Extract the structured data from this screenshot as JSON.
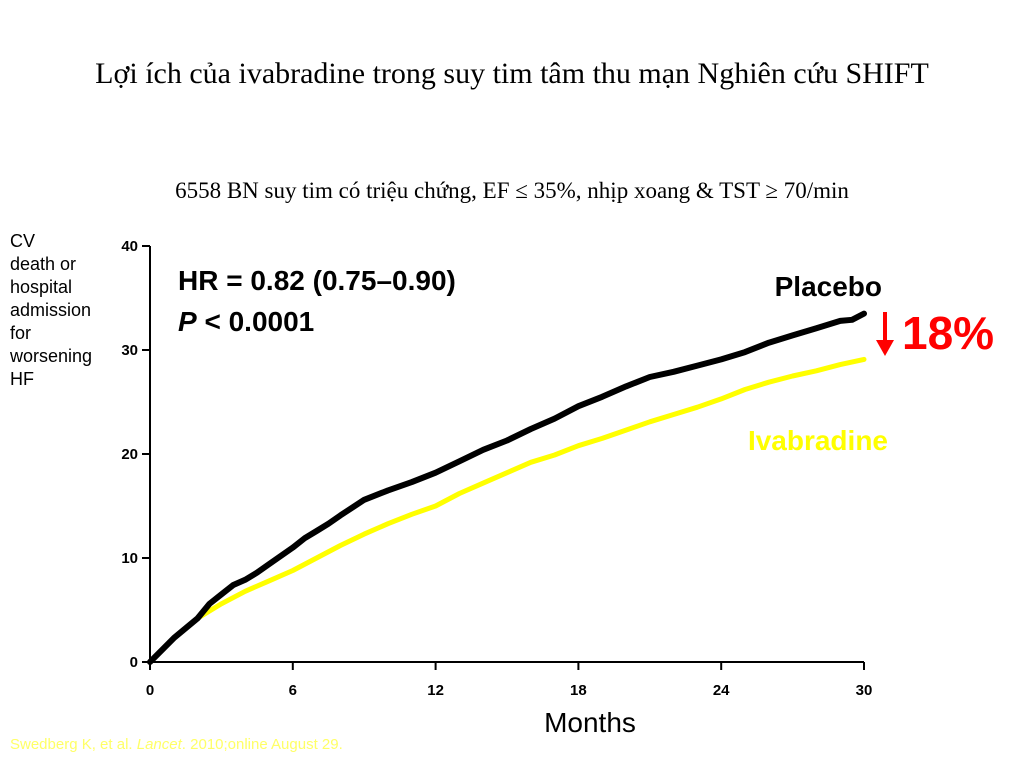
{
  "title": "Lợi ích của ivabradine trong suy tim tâm thu mạn Nghiên cứu SHIFT",
  "subtitle": "6558 BN suy tim có triệu chứng, EF ≤ 35%, nhịp xoang & TST ≥ 70/min",
  "source": {
    "prefix": "Swedberg K, et al. ",
    "journal": "Lancet",
    "suffix": ". 2010;online August 29."
  },
  "chart_data": {
    "type": "line",
    "xlabel": "Months",
    "ylabel_lines": [
      "CV",
      "death or",
      "hospital",
      "admission",
      "for",
      "worsening",
      "HF"
    ],
    "xlim": [
      0,
      30
    ],
    "ylim": [
      0,
      40
    ],
    "xticks": [
      0,
      6,
      12,
      18,
      24,
      30
    ],
    "yticks": [
      0,
      10,
      20,
      30,
      40
    ],
    "grid": false,
    "stats": {
      "hr": "HR = 0.82 (0.75–0.90)",
      "p_symbol": "P",
      "p_rest": " < 0.0001"
    },
    "reduction": {
      "label": "18%",
      "color": "#ff0000"
    },
    "series": [
      {
        "name": "Placebo",
        "color": "#000000",
        "x": [
          0,
          1,
          2,
          2.5,
          3,
          3.5,
          4,
          4.5,
          5,
          6,
          6.5,
          7,
          7.5,
          8,
          9,
          10,
          11,
          12,
          13,
          14,
          15,
          16,
          17,
          18,
          19,
          20,
          21,
          22,
          23,
          24,
          25,
          26,
          27,
          28,
          29,
          29.5,
          30
        ],
        "y": [
          0,
          2.3,
          4.2,
          5.6,
          6.5,
          7.4,
          7.9,
          8.6,
          9.4,
          11.0,
          11.9,
          12.6,
          13.3,
          14.1,
          15.6,
          16.5,
          17.3,
          18.2,
          19.3,
          20.4,
          21.3,
          22.4,
          23.4,
          24.6,
          25.5,
          26.5,
          27.4,
          27.9,
          28.5,
          29.1,
          29.8,
          30.7,
          31.4,
          32.1,
          32.8,
          32.9,
          33.5
        ]
      },
      {
        "name": "Ivabradine",
        "color": "#ffff00",
        "x": [
          0,
          1,
          2,
          3,
          4,
          5,
          6,
          7,
          8,
          9,
          10,
          11,
          12,
          13,
          14,
          15,
          16,
          17,
          18,
          19,
          20,
          21,
          22,
          23,
          24,
          25,
          26,
          27,
          28,
          29,
          30
        ],
        "y": [
          0,
          2.3,
          4.2,
          5.6,
          6.8,
          7.8,
          8.8,
          10.0,
          11.2,
          12.3,
          13.3,
          14.2,
          15.0,
          16.2,
          17.2,
          18.2,
          19.2,
          19.9,
          20.8,
          21.5,
          22.3,
          23.1,
          23.8,
          24.5,
          25.3,
          26.2,
          26.9,
          27.5,
          28.0,
          28.6,
          29.1
        ]
      }
    ]
  }
}
